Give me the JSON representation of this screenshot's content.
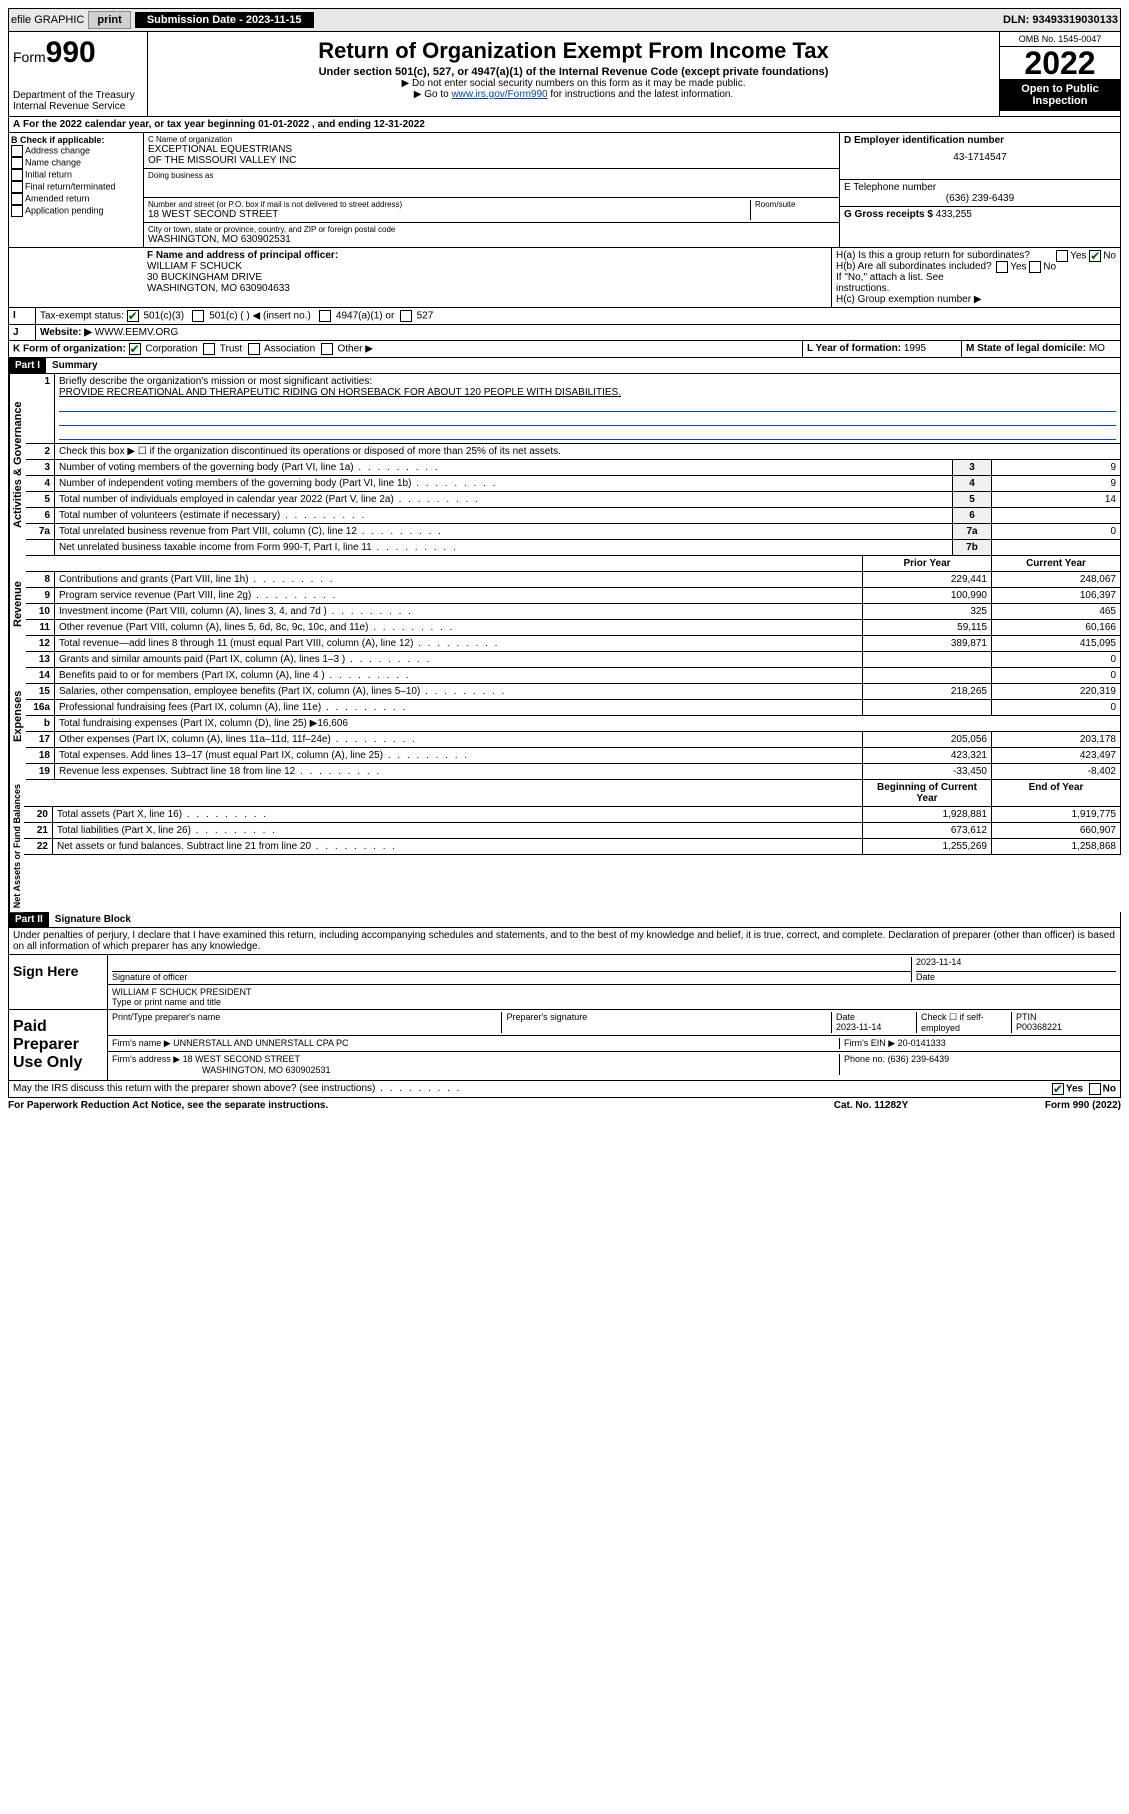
{
  "topbar": {
    "efile": "efile GRAPHIC",
    "print": "print",
    "subdate_label": "Submission Date - 2023-11-15",
    "dln": "DLN: 93493319030133"
  },
  "header": {
    "form": "Form",
    "form_num": "990",
    "dept": "Department of the Treasury",
    "irs": "Internal Revenue Service",
    "title": "Return of Organization Exempt From Income Tax",
    "subtitle": "Under section 501(c), 527, or 4947(a)(1) of the Internal Revenue Code (except private foundations)",
    "note1": "▶ Do not enter social security numbers on this form as it may be made public.",
    "note2_pre": "▶ Go to ",
    "note2_link": "www.irs.gov/Form990",
    "note2_post": " for instructions and the latest information.",
    "omb": "OMB No. 1545-0047",
    "year": "2022",
    "open": "Open to Public Inspection"
  },
  "periodA": {
    "text_pre": "For the 2022 calendar year, or tax year beginning ",
    "begin": "01-01-2022",
    "mid": " , and ending ",
    "end": "12-31-2022"
  },
  "boxB": {
    "label": "B Check if applicable:",
    "items": [
      "Address change",
      "Name change",
      "Initial return",
      "Final return/terminated",
      "Amended return",
      "Application pending"
    ]
  },
  "boxC": {
    "label": "C Name of organization",
    "name1": "EXCEPTIONAL EQUESTRIANS",
    "name2": "OF THE MISSOURI VALLEY INC",
    "dba_label": "Doing business as",
    "addr_label": "Number and street (or P.O. box if mail is not delivered to street address)",
    "room_label": "Room/suite",
    "addr": "18 WEST SECOND STREET",
    "city_label": "City or town, state or province, country, and ZIP or foreign postal code",
    "city": "WASHINGTON, MO  630902531"
  },
  "boxD": {
    "label": "D Employer identification number",
    "ein": "43-1714547"
  },
  "boxE": {
    "label": "E Telephone number",
    "phone": "(636) 239-6439"
  },
  "boxG": {
    "label": "G Gross receipts $",
    "amount": "433,255"
  },
  "boxF": {
    "label": "F Name and address of principal officer:",
    "name": "WILLIAM F SCHUCK",
    "addr1": "30 BUCKINGHAM DRIVE",
    "addr2": "WASHINGTON, MO  630904633"
  },
  "boxH": {
    "ha_label": "H(a)  Is this a group return for subordinates?",
    "hb_label": "H(b)  Are all subordinates included?",
    "hb_note": "If \"No,\" attach a list. See instructions.",
    "hc_label": "H(c)  Group exemption number ▶",
    "yes": "Yes",
    "no": "No"
  },
  "boxI": {
    "label": "Tax-exempt status:",
    "opt1": "501(c)(3)",
    "opt2": "501(c) (  ) ◀ (insert no.)",
    "opt3": "4947(a)(1) or",
    "opt4": "527"
  },
  "boxJ": {
    "label": "Website: ▶",
    "val": "WWW.EEMV.ORG"
  },
  "boxK": {
    "label": "K Form of organization:",
    "opts": [
      "Corporation",
      "Trust",
      "Association",
      "Other ▶"
    ]
  },
  "boxL": {
    "label": "L Year of formation:",
    "val": "1995"
  },
  "boxM": {
    "label": "M State of legal domicile:",
    "val": "MO"
  },
  "part1": {
    "label": "Part I",
    "title": "Summary",
    "q1": "Briefly describe the organization's mission or most significant activities:",
    "mission": "PROVIDE RECREATIONAL AND THERAPEUTIC RIDING ON HORSEBACK FOR ABOUT 120 PEOPLE WITH DISABILITIES.",
    "q2": "Check this box ▶ ☐  if the organization discontinued its operations or disposed of more than 25% of its net assets.",
    "lines_gov": [
      {
        "n": "3",
        "d": "Number of voting members of the governing body (Part VI, line 1a)",
        "box": "3",
        "v": "9"
      },
      {
        "n": "4",
        "d": "Number of independent voting members of the governing body (Part VI, line 1b)",
        "box": "4",
        "v": "9"
      },
      {
        "n": "5",
        "d": "Total number of individuals employed in calendar year 2022 (Part V, line 2a)",
        "box": "5",
        "v": "14"
      },
      {
        "n": "6",
        "d": "Total number of volunteers (estimate if necessary)",
        "box": "6",
        "v": ""
      },
      {
        "n": "7a",
        "d": "Total unrelated business revenue from Part VIII, column (C), line 12",
        "box": "7a",
        "v": "0"
      },
      {
        "n": "",
        "d": "Net unrelated business taxable income from Form 990-T, Part I, line 11",
        "box": "7b",
        "v": ""
      }
    ],
    "col_prior": "Prior Year",
    "col_current": "Current Year",
    "lines_rev": [
      {
        "n": "8",
        "d": "Contributions and grants (Part VIII, line 1h)",
        "p": "229,441",
        "c": "248,067"
      },
      {
        "n": "9",
        "d": "Program service revenue (Part VIII, line 2g)",
        "p": "100,990",
        "c": "106,397"
      },
      {
        "n": "10",
        "d": "Investment income (Part VIII, column (A), lines 3, 4, and 7d )",
        "p": "325",
        "c": "465"
      },
      {
        "n": "11",
        "d": "Other revenue (Part VIII, column (A), lines 5, 6d, 8c, 9c, 10c, and 11e)",
        "p": "59,115",
        "c": "60,166"
      },
      {
        "n": "12",
        "d": "Total revenue—add lines 8 through 11 (must equal Part VIII, column (A), line 12)",
        "p": "389,871",
        "c": "415,095"
      }
    ],
    "lines_exp": [
      {
        "n": "13",
        "d": "Grants and similar amounts paid (Part IX, column (A), lines 1–3 )",
        "p": "",
        "c": "0"
      },
      {
        "n": "14",
        "d": "Benefits paid to or for members (Part IX, column (A), line 4 )",
        "p": "",
        "c": "0"
      },
      {
        "n": "15",
        "d": "Salaries, other compensation, employee benefits (Part IX, column (A), lines 5–10)",
        "p": "218,265",
        "c": "220,319"
      },
      {
        "n": "16a",
        "d": "Professional fundraising fees (Part IX, column (A), line 11e)",
        "p": "",
        "c": "0"
      },
      {
        "n": "b",
        "d": "Total fundraising expenses (Part IX, column (D), line 25) ▶16,606",
        "p": "__hide__",
        "c": "__hide__"
      },
      {
        "n": "17",
        "d": "Other expenses (Part IX, column (A), lines 11a–11d, 11f–24e)",
        "p": "205,056",
        "c": "203,178"
      },
      {
        "n": "18",
        "d": "Total expenses. Add lines 13–17 (must equal Part IX, column (A), line 25)",
        "p": "423,321",
        "c": "423,497"
      },
      {
        "n": "19",
        "d": "Revenue less expenses. Subtract line 18 from line 12",
        "p": "-33,450",
        "c": "-8,402"
      }
    ],
    "col_begin": "Beginning of Current Year",
    "col_end": "End of Year",
    "lines_net": [
      {
        "n": "20",
        "d": "Total assets (Part X, line 16)",
        "p": "1,928,881",
        "c": "1,919,775"
      },
      {
        "n": "21",
        "d": "Total liabilities (Part X, line 26)",
        "p": "673,612",
        "c": "660,907"
      },
      {
        "n": "22",
        "d": "Net assets or fund balances. Subtract line 21 from line 20",
        "p": "1,255,269",
        "c": "1,258,868"
      }
    ],
    "vert_gov": "Activities & Governance",
    "vert_rev": "Revenue",
    "vert_exp": "Expenses",
    "vert_net": "Net Assets or Fund Balances"
  },
  "part2": {
    "label": "Part II",
    "title": "Signature Block",
    "declaration": "Under penalties of perjury, I declare that I have examined this return, including accompanying schedules and statements, and to the best of my knowledge and belief, it is true, correct, and complete. Declaration of preparer (other than officer) is based on all information of which preparer has any knowledge."
  },
  "sign": {
    "here": "Sign Here",
    "sig_label": "Signature of officer",
    "date_label": "Date",
    "date": "2023-11-14",
    "name": "WILLIAM F SCHUCK  PRESIDENT",
    "name_label": "Type or print name and title"
  },
  "preparer": {
    "label": "Paid Preparer Use Only",
    "name_label": "Print/Type preparer's name",
    "sig_label": "Preparer's signature",
    "date_label": "Date",
    "date": "2023-11-14",
    "check_label": "Check ☐ if self-employed",
    "ptin_label": "PTIN",
    "ptin": "P00368221",
    "firm_name_label": "Firm's name    ▶",
    "firm_name": "UNNERSTALL AND UNNERSTALL CPA PC",
    "firm_ein_label": "Firm's EIN ▶",
    "firm_ein": "20-0141333",
    "firm_addr_label": "Firm's address ▶",
    "firm_addr1": "18 WEST SECOND STREET",
    "firm_addr2": "WASHINGTON, MO  630902531",
    "phone_label": "Phone no.",
    "phone": "(636) 239-6439"
  },
  "footer": {
    "discuss": "May the IRS discuss this return with the preparer shown above? (see instructions)",
    "yes": "Yes",
    "no": "No",
    "paperwork": "For Paperwork Reduction Act Notice, see the separate instructions.",
    "cat": "Cat. No. 11282Y",
    "form": "Form 990 (2022)"
  }
}
